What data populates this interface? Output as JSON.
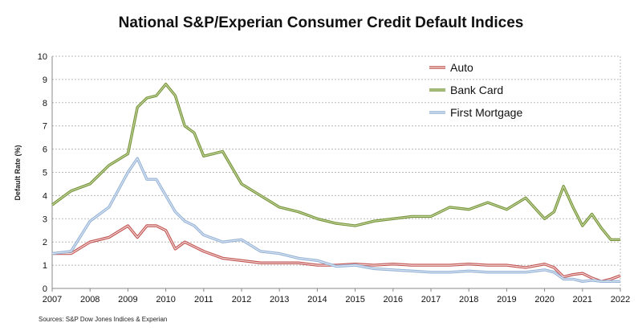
{
  "chart_data": {
    "type": "line",
    "title": "National S&P/Experian Consumer Credit Default Indices",
    "ylabel": "Default Rate (%)",
    "xlabel": "",
    "source": "Sources: S&P Dow Jones Indices & Experian",
    "xlim": [
      2007,
      2022
    ],
    "ylim": [
      0,
      10
    ],
    "x_ticks": [
      "2007",
      "2008",
      "2009",
      "2010",
      "2011",
      "2012",
      "2013",
      "2014",
      "2015",
      "2016",
      "2017",
      "2018",
      "2019",
      "2020",
      "2021",
      "2022"
    ],
    "y_ticks": [
      "0",
      "1",
      "2",
      "3",
      "4",
      "5",
      "6",
      "7",
      "8",
      "9",
      "10"
    ],
    "grid": "y-dashed",
    "legend_position": "top-right",
    "x": [
      2007.0,
      2007.5,
      2008.0,
      2008.5,
      2009.0,
      2009.25,
      2009.5,
      2009.75,
      2010.0,
      2010.25,
      2010.5,
      2010.75,
      2011.0,
      2011.5,
      2012.0,
      2012.5,
      2013.0,
      2013.5,
      2014.0,
      2014.5,
      2015.0,
      2015.5,
      2016.0,
      2016.5,
      2017.0,
      2017.5,
      2018.0,
      2018.5,
      2019.0,
      2019.5,
      2020.0,
      2020.25,
      2020.5,
      2020.75,
      2021.0,
      2021.25,
      2021.5,
      2021.75,
      2022.0
    ],
    "series": [
      {
        "name": "Auto",
        "color": "#c0504d",
        "values": [
          1.5,
          1.5,
          2.0,
          2.2,
          2.7,
          2.2,
          2.7,
          2.7,
          2.5,
          1.7,
          2.0,
          1.8,
          1.6,
          1.3,
          1.2,
          1.1,
          1.1,
          1.1,
          1.0,
          1.0,
          1.05,
          1.0,
          1.05,
          1.0,
          1.0,
          1.0,
          1.05,
          1.0,
          1.0,
          0.9,
          1.05,
          0.9,
          0.5,
          0.6,
          0.65,
          0.45,
          0.3,
          0.4,
          0.55
        ]
      },
      {
        "name": "Bank Card",
        "color": "#77933c",
        "values": [
          3.6,
          4.2,
          4.5,
          5.3,
          5.8,
          7.8,
          8.2,
          8.3,
          8.8,
          8.3,
          7.0,
          6.7,
          5.7,
          5.9,
          4.5,
          4.0,
          3.5,
          3.3,
          3.0,
          2.8,
          2.7,
          2.9,
          3.0,
          3.1,
          3.1,
          3.5,
          3.4,
          3.7,
          3.4,
          3.9,
          3.0,
          3.3,
          4.4,
          3.5,
          2.7,
          3.2,
          2.6,
          2.1,
          2.1
        ]
      },
      {
        "name": "First Mortgage",
        "color": "#95b3d7",
        "values": [
          1.5,
          1.6,
          2.9,
          3.5,
          5.0,
          5.6,
          4.7,
          4.7,
          4.0,
          3.3,
          2.9,
          2.7,
          2.3,
          2.0,
          2.1,
          1.6,
          1.5,
          1.3,
          1.2,
          0.95,
          1.0,
          0.85,
          0.8,
          0.75,
          0.7,
          0.7,
          0.75,
          0.7,
          0.7,
          0.7,
          0.8,
          0.7,
          0.4,
          0.4,
          0.3,
          0.35,
          0.3,
          0.3,
          0.3
        ]
      }
    ]
  }
}
